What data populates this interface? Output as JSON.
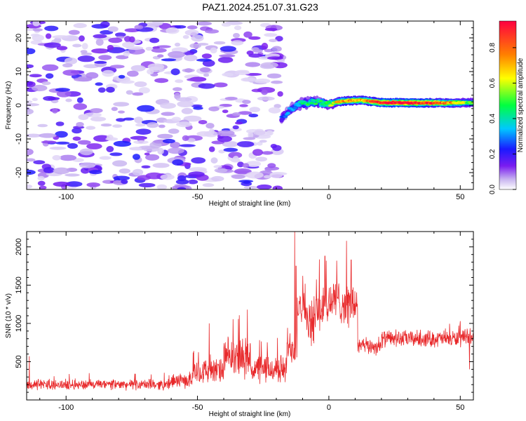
{
  "title": "PAZ1.2024.251.07.31.G23",
  "chart_data": [
    {
      "type": "heatmap",
      "xlabel": "Height of straight line (km)",
      "ylabel": "Frequency (Hz)",
      "xlim": [
        -115,
        55
      ],
      "ylim": [
        -25,
        25
      ],
      "xticks": [
        -100,
        -50,
        0,
        50
      ],
      "yticks": [
        20,
        10,
        0,
        -10,
        -20
      ],
      "colorbar": {
        "label": "Normalized spectral amplitude",
        "range": [
          0,
          0.95
        ],
        "ticks": [
          0.0,
          0.2,
          0.4,
          0.6,
          0.8
        ],
        "colors": [
          "#ffffff",
          "#c8b4f0",
          "#7a1cf0",
          "#1a1aff",
          "#00c8ff",
          "#00ff40",
          "#ffff00",
          "#ff8000",
          "#ff0040"
        ]
      },
      "noise_region": {
        "x": [
          -115,
          -18
        ],
        "freq": [
          -25,
          25
        ],
        "amplitude": 0.2
      },
      "signal_ridge": [
        {
          "x": -18,
          "freq": -4,
          "amplitude": 0.25
        },
        {
          "x": -15,
          "freq": -1.5,
          "amplitude": 0.3
        },
        {
          "x": -12,
          "freq": 0.2,
          "amplitude": 0.35
        },
        {
          "x": -8,
          "freq": 0.8,
          "amplitude": 0.45
        },
        {
          "x": -4,
          "freq": 0.8,
          "amplitude": 0.45
        },
        {
          "x": 0,
          "freq": 0.4,
          "amplitude": 0.5
        },
        {
          "x": 5,
          "freq": 1.2,
          "amplitude": 0.75
        },
        {
          "x": 12,
          "freq": 1.5,
          "amplitude": 0.7
        },
        {
          "x": 20,
          "freq": 0.8,
          "amplitude": 0.9
        },
        {
          "x": 30,
          "freq": 0.7,
          "amplitude": 0.95
        },
        {
          "x": 40,
          "freq": 0.7,
          "amplitude": 0.85
        },
        {
          "x": 48,
          "freq": 0.7,
          "amplitude": 0.7
        },
        {
          "x": 55,
          "freq": 0.8,
          "amplitude": 0.5
        }
      ]
    },
    {
      "type": "line",
      "xlabel": "Height of straight line (km)",
      "ylabel": "SNR (10 * v/v)",
      "xlim": [
        -115,
        55
      ],
      "ylim": [
        0,
        2200
      ],
      "xticks": [
        -100,
        -50,
        0,
        50
      ],
      "yticks": [
        500,
        1000,
        1500,
        2000
      ],
      "color": "#e8282a",
      "series": [
        {
          "segments": [
            {
              "x": [
                -115,
                -60
              ],
              "mean": 200,
              "noise": 80
            },
            {
              "x": [
                -60,
                -52
              ],
              "mean": 250,
              "noise": 110
            },
            {
              "x": [
                -52,
                -40
              ],
              "mean": 380,
              "noise": 200
            },
            {
              "x": [
                -40,
                -30
              ],
              "mean": 550,
              "noise": 300
            },
            {
              "x": [
                -30,
                -16
              ],
              "mean": 400,
              "noise": 230
            },
            {
              "x": [
                -16,
                -12
              ],
              "mean": 700,
              "noise": 300
            },
            {
              "x": [
                -12,
                -9
              ],
              "mean": 1300,
              "noise": 400
            },
            {
              "x": [
                -9,
                -5
              ],
              "mean": 1000,
              "noise": 350
            },
            {
              "x": [
                -5,
                0
              ],
              "mean": 1200,
              "noise": 400
            },
            {
              "x": [
                0,
                5
              ],
              "mean": 1300,
              "noise": 350
            },
            {
              "x": [
                5,
                11
              ],
              "mean": 1250,
              "noise": 350
            },
            {
              "x": [
                11,
                20
              ],
              "mean": 700,
              "noise": 130
            },
            {
              "x": [
                20,
                55
              ],
              "mean": 800,
              "noise": 130
            }
          ],
          "peaks": [
            {
              "x": -13,
              "y": 2200
            },
            {
              "x": -12.5,
              "y": 1750
            },
            {
              "x": -1.5,
              "y": 1880
            },
            {
              "x": -1,
              "y": 1820
            },
            {
              "x": 3,
              "y": 1820
            },
            {
              "x": 8.5,
              "y": 1830
            },
            {
              "x": -45.5,
              "y": 1000
            },
            {
              "x": -31,
              "y": 1180
            },
            {
              "x": -114,
              "y": 570
            },
            {
              "x": 50,
              "y": 1030
            },
            {
              "x": 53.5,
              "y": 400
            }
          ]
        }
      ]
    }
  ]
}
